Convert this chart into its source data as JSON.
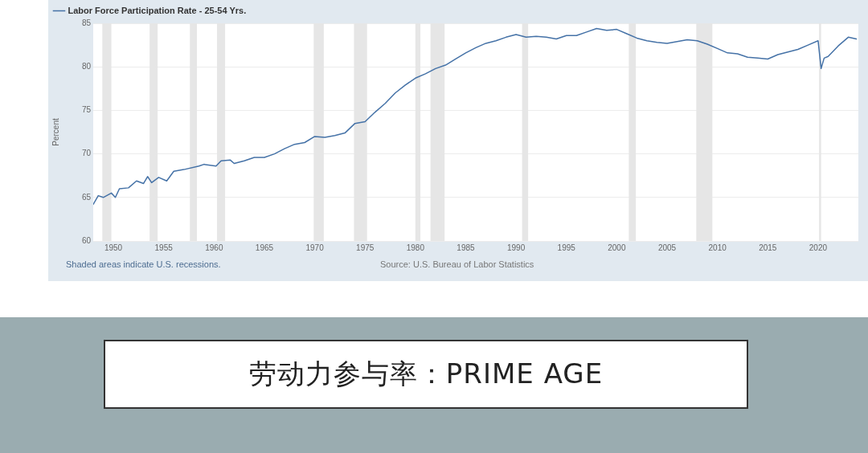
{
  "chart_data": {
    "type": "line",
    "ylabel": "Percent",
    "xlim": [
      1948,
      2024
    ],
    "ylim": [
      60,
      85
    ],
    "xticks": [
      1950,
      1955,
      1960,
      1965,
      1970,
      1975,
      1980,
      1985,
      1990,
      1995,
      2000,
      2005,
      2010,
      2015,
      2020
    ],
    "yticks": [
      60,
      65,
      70,
      75,
      80,
      85
    ],
    "grid": "y",
    "legend": "top left",
    "marker": "none",
    "line_style": "solid",
    "series": [
      {
        "name": "Labor Force Participation Rate - 25-54 Yrs.",
        "color": "#4572a7",
        "x": [
          1948.0,
          1948.5,
          1949.0,
          1949.8,
          1950.2,
          1950.6,
          1951.5,
          1952.3,
          1953.0,
          1953.4,
          1953.8,
          1954.5,
          1955.3,
          1956.0,
          1957.0,
          1958.5,
          1959.0,
          1960.2,
          1960.7,
          1961.6,
          1962.0,
          1963.0,
          1964.0,
          1965.0,
          1966.0,
          1967.0,
          1968.0,
          1969.0,
          1970.0,
          1971.0,
          1972.0,
          1973.0,
          1974.0,
          1975.0,
          1976.0,
          1977.0,
          1978.0,
          1979.0,
          1980.0,
          1981.0,
          1982.0,
          1983.0,
          1984.0,
          1985.0,
          1986.0,
          1987.0,
          1988.0,
          1989.0,
          1990.0,
          1991.0,
          1992.0,
          1993.0,
          1994.0,
          1995.0,
          1996.0,
          1997.0,
          1998.0,
          1999.0,
          2000.0,
          2001.0,
          2002.0,
          2003.0,
          2004.0,
          2005.0,
          2006.0,
          2007.0,
          2008.0,
          2009.0,
          2010.0,
          2011.0,
          2012.0,
          2013.0,
          2014.0,
          2015.0,
          2016.0,
          2017.0,
          2018.0,
          2019.0,
          2020.0,
          2020.3,
          2020.6,
          2021.0,
          2022.0,
          2023.0,
          2023.8
        ],
        "values": [
          64.2,
          65.2,
          65.0,
          65.5,
          65.0,
          66.0,
          66.1,
          66.9,
          66.6,
          67.4,
          66.7,
          67.3,
          66.9,
          68.0,
          68.2,
          68.6,
          68.8,
          68.6,
          69.2,
          69.3,
          68.9,
          69.2,
          69.6,
          69.6,
          70.0,
          70.6,
          71.1,
          71.3,
          72.0,
          71.9,
          72.1,
          72.4,
          73.5,
          73.7,
          74.8,
          75.8,
          77.0,
          77.9,
          78.7,
          79.2,
          79.8,
          80.2,
          80.9,
          81.6,
          82.2,
          82.7,
          83.0,
          83.4,
          83.7,
          83.4,
          83.5,
          83.4,
          83.2,
          83.6,
          83.6,
          84.0,
          84.4,
          84.2,
          84.3,
          83.8,
          83.3,
          83.0,
          82.8,
          82.7,
          82.9,
          83.1,
          83.0,
          82.6,
          82.1,
          81.6,
          81.5,
          81.1,
          81.0,
          80.9,
          81.4,
          81.7,
          82.0,
          82.5,
          83.0,
          79.8,
          81.0,
          81.2,
          82.4,
          83.4,
          83.2
        ]
      }
    ],
    "bands": [
      {
        "axis": "x",
        "from": 1948.9,
        "to": 1949.8,
        "color": "#e6e6e6"
      },
      {
        "axis": "x",
        "from": 1953.6,
        "to": 1954.4,
        "color": "#e6e6e6"
      },
      {
        "axis": "x",
        "from": 1957.6,
        "to": 1958.3,
        "color": "#e6e6e6"
      },
      {
        "axis": "x",
        "from": 1960.3,
        "to": 1961.1,
        "color": "#e6e6e6"
      },
      {
        "axis": "x",
        "from": 1969.9,
        "to": 1970.9,
        "color": "#e6e6e6"
      },
      {
        "axis": "x",
        "from": 1973.9,
        "to": 1975.2,
        "color": "#e6e6e6"
      },
      {
        "axis": "x",
        "from": 1980.0,
        "to": 1980.5,
        "color": "#e6e6e6"
      },
      {
        "axis": "x",
        "from": 1981.5,
        "to": 1982.9,
        "color": "#e6e6e6"
      },
      {
        "axis": "x",
        "from": 1990.6,
        "to": 1991.2,
        "color": "#e6e6e6"
      },
      {
        "axis": "x",
        "from": 2001.2,
        "to": 2001.9,
        "color": "#e6e6e6"
      },
      {
        "axis": "x",
        "from": 2007.9,
        "to": 2009.5,
        "color": "#e6e6e6"
      },
      {
        "axis": "x",
        "from": 2020.1,
        "to": 2020.3,
        "color": "#e6e6e6"
      }
    ],
    "annotations": [
      "Shaded areas indicate U.S. recessions.",
      "Source: U.S. Bureau of Labor Statistics",
      "劳动力参与率：PRIME AGE"
    ]
  }
}
